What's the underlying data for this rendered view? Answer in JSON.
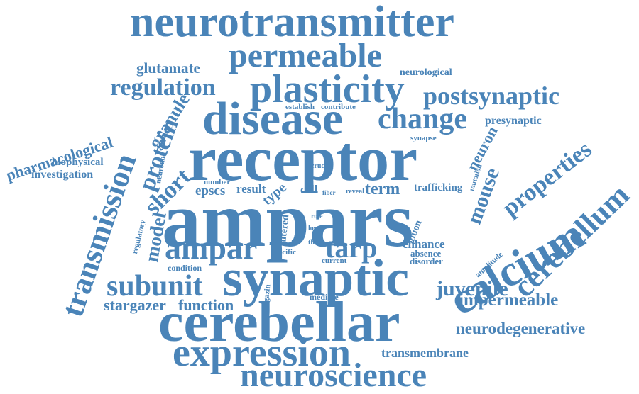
{
  "cloud": {
    "color": "#4a84b8",
    "words": [
      {
        "text": "neurotransmitter"
      },
      {
        "text": "permeable"
      },
      {
        "text": "glutamate"
      },
      {
        "text": "neurological"
      },
      {
        "text": "regulation"
      },
      {
        "text": "plasticity"
      },
      {
        "text": "postsynaptic"
      },
      {
        "text": "transmission"
      },
      {
        "text": "granule"
      },
      {
        "text": "disease"
      },
      {
        "text": "change"
      },
      {
        "text": "establish"
      },
      {
        "text": "contribute"
      },
      {
        "text": "presynaptic"
      },
      {
        "text": "pharmacological"
      },
      {
        "text": "protein"
      },
      {
        "text": "synapse"
      },
      {
        "text": "biophysical"
      },
      {
        "text": "investigation"
      },
      {
        "text": "neuronal"
      },
      {
        "text": "receptor"
      },
      {
        "text": "neuron"
      },
      {
        "text": "properties"
      },
      {
        "text": "short"
      },
      {
        "text": "crucial"
      },
      {
        "text": "mutation"
      },
      {
        "text": "mouse"
      },
      {
        "text": "number"
      },
      {
        "text": "epscs"
      },
      {
        "text": "result"
      },
      {
        "text": "type"
      },
      {
        "text": "cell"
      },
      {
        "text": "fiber"
      },
      {
        "text": "reveal"
      },
      {
        "text": "term"
      },
      {
        "text": "trafficking"
      },
      {
        "text": "cerebellum"
      },
      {
        "text": "calcium"
      },
      {
        "text": "model"
      },
      {
        "text": "regulatory"
      },
      {
        "text": "ampars"
      },
      {
        "text": "role"
      },
      {
        "text": "loss"
      },
      {
        "text": "gluon"
      },
      {
        "text": "altered"
      },
      {
        "text": "ampar"
      },
      {
        "text": "thesis"
      },
      {
        "text": "normal"
      },
      {
        "text": "tarp"
      },
      {
        "text": "enhance"
      },
      {
        "text": "absence"
      },
      {
        "text": "specific"
      },
      {
        "text": "current"
      },
      {
        "text": "disorder"
      },
      {
        "text": "amplitude"
      },
      {
        "text": "condition"
      },
      {
        "text": "synaptic"
      },
      {
        "text": "subunit"
      },
      {
        "text": "juvenile"
      },
      {
        "text": "stargazin"
      },
      {
        "text": "mediate"
      },
      {
        "text": "impermeable"
      },
      {
        "text": "stargazer"
      },
      {
        "text": "function"
      },
      {
        "text": "cerebellar"
      },
      {
        "text": "neurodegenerative"
      },
      {
        "text": "expression"
      },
      {
        "text": "transmembrane"
      },
      {
        "text": "neuroscience"
      }
    ]
  }
}
